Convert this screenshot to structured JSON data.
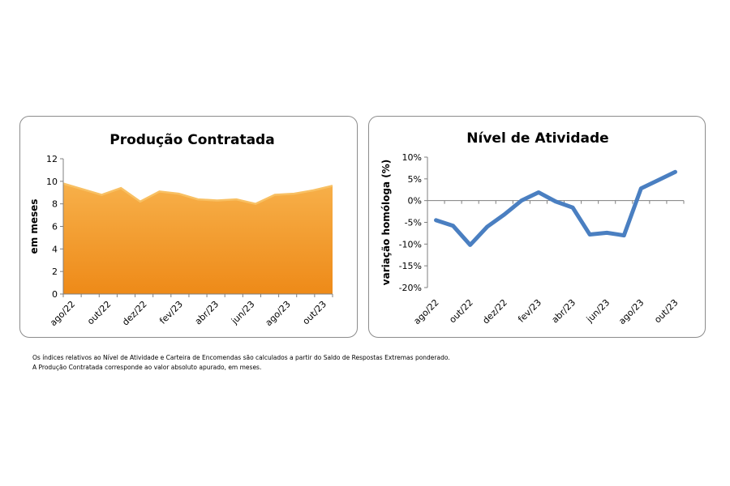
{
  "chart_data": [
    {
      "type": "area",
      "title": "Produção Contratada",
      "xlabel": "",
      "ylabel": "em meses",
      "ylim": [
        0,
        12
      ],
      "yticks": [
        "0",
        "2",
        "4",
        "6",
        "8",
        "10",
        "12"
      ],
      "xtick_labels": [
        "ago/22",
        "out/22",
        "dez/22",
        "fev/23",
        "abr/23",
        "jun/23",
        "ago/23",
        "out/23"
      ],
      "x": [
        "ago/22",
        "set/22",
        "out/22",
        "nov/22",
        "dez/22",
        "jan/23",
        "fev/23",
        "mar/23",
        "abr/23",
        "mai/23",
        "jun/23",
        "jul/23",
        "ago/23",
        "set/23",
        "out/23"
      ],
      "values": [
        9.8,
        9.3,
        8.8,
        9.4,
        8.2,
        9.1,
        8.9,
        8.4,
        8.3,
        8.4,
        8.0,
        8.8,
        8.9,
        9.2,
        9.6
      ],
      "fill_color": "#f29a2e",
      "grid": false
    },
    {
      "type": "line",
      "title": "Nível de Atividade",
      "xlabel": "",
      "ylabel": "variação homóloga (%)",
      "ylim": [
        -20,
        10
      ],
      "yticks": [
        "-20%",
        "-15%",
        "-10%",
        "-5%",
        "0%",
        "5%",
        "10%"
      ],
      "xtick_labels": [
        "ago/22",
        "out/22",
        "dez/22",
        "fev/23",
        "abr/23",
        "jun/23",
        "ago/23",
        "out/23"
      ],
      "x": [
        "ago/22",
        "set/22",
        "out/22",
        "nov/22",
        "dez/22",
        "jan/23",
        "fev/23",
        "mar/23",
        "abr/23",
        "mai/23",
        "jun/23",
        "jul/23",
        "ago/23",
        "set/23",
        "out/23"
      ],
      "values": [
        -4.5,
        -5.8,
        -10.2,
        -6.0,
        -3.2,
        0.0,
        1.9,
        -0.2,
        -1.6,
        -7.8,
        -7.4,
        -8.0,
        2.8,
        4.7,
        6.6
      ],
      "line_color": "#4a7fc1",
      "grid": false
    }
  ],
  "footnotes": {
    "line1": "Os índices relativos ao Nível de Atividade e Carteira de Encomendas são calculados a partir do Saldo de Respostas Extremas ponderado.",
    "line2": "A Produção Contratada corresponde ao valor absoluto apurado, em meses."
  }
}
